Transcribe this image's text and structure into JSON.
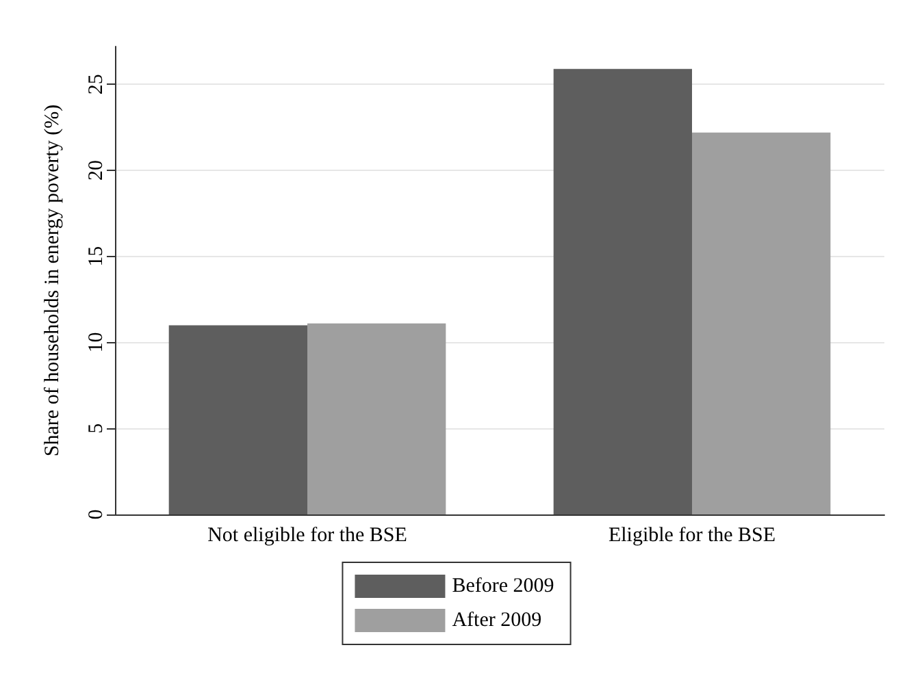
{
  "chart_data": {
    "type": "bar",
    "ylabel": "Share of households in energy poverty (%)",
    "categories": [
      "Not eligible for the BSE",
      "Eligible for the BSE"
    ],
    "series": [
      {
        "name": "Before 2009",
        "color": "#5e5e5e",
        "values": [
          11.0,
          25.9
        ]
      },
      {
        "name": "After 2009",
        "color": "#9f9f9f",
        "values": [
          11.1,
          22.2
        ]
      }
    ],
    "ylim": [
      0,
      27.2
    ],
    "yticks": [
      0,
      5,
      10,
      15,
      20,
      25
    ],
    "grid": "y",
    "legend": "bottom"
  }
}
